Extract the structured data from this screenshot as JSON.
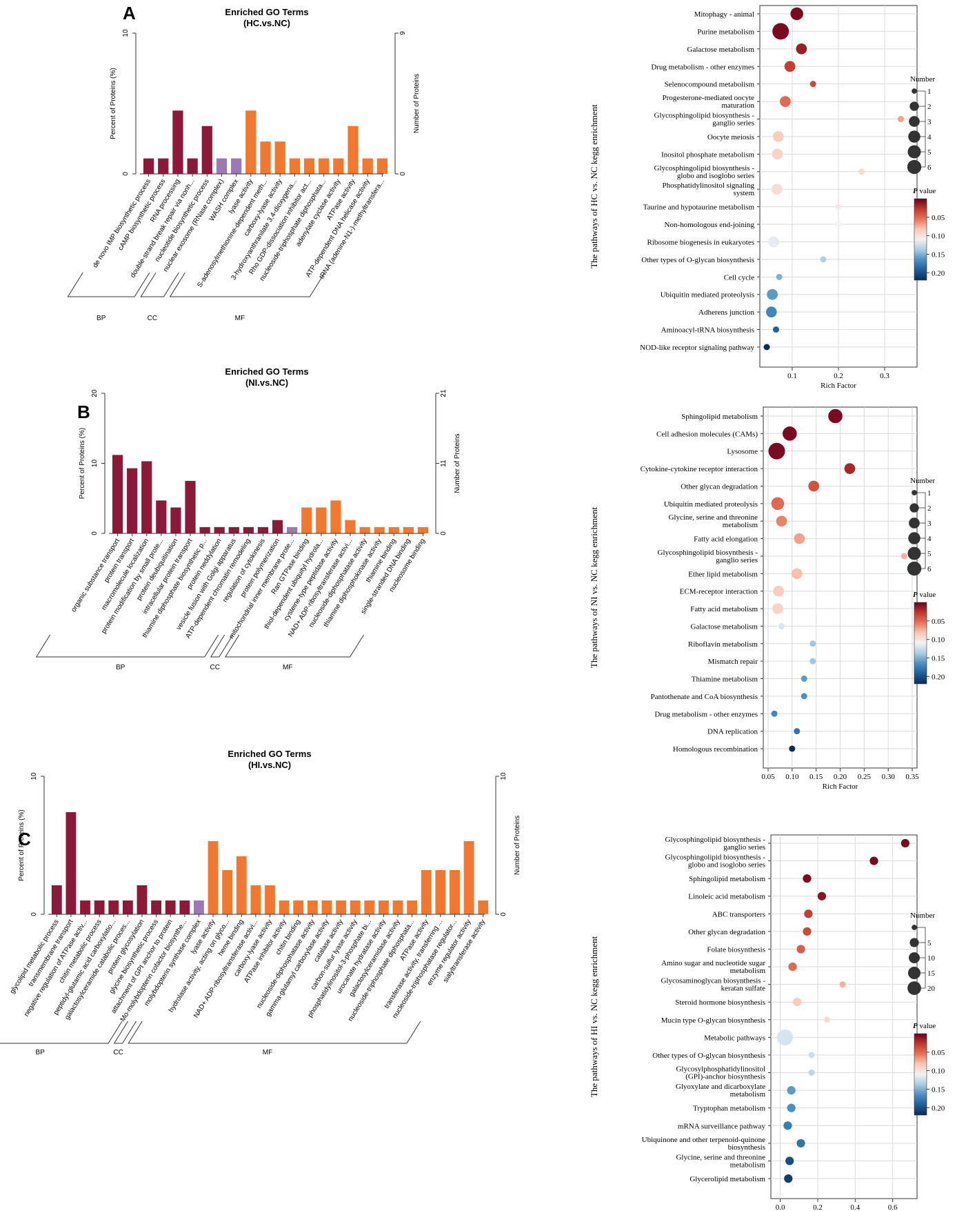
{
  "figure": {
    "panel_labels": [
      "A",
      "B",
      "C"
    ]
  },
  "colors": {
    "BP": "#8b1a3a",
    "CC": "#9b7ab4",
    "MF": "#f07830",
    "grid": "#d9d9d9",
    "axis": "#333333",
    "number_dot": "#333333",
    "pvalue_scale": [
      "#6b0020",
      "#c0392b",
      "#e8735a",
      "#f9c9b6",
      "#f2f2f2",
      "#a9cce3",
      "#4a90c2",
      "#1f5d99",
      "#0b2a55"
    ]
  },
  "chart_data": [
    {
      "type": "bar",
      "panel": "A",
      "title": "Enriched GO Terms",
      "subtitle": "(HC.vs.NC)",
      "ylabel": "Percent of Proteins (%)",
      "y2label": "Number of Proteins",
      "ylim": [
        0,
        10
      ],
      "yticks": [
        "10",
        "0"
      ],
      "y2ticks": [
        "9",
        "0"
      ],
      "categories": [
        "de novo IMP biosynthetic process",
        "cAMP biosynthetic process",
        "RNA processing",
        "double-strand break repair via nonh...",
        "nucleotide biosynthetic process",
        "nuclear exosome (RNase complex)",
        "WASH complex",
        "lyase activity",
        "S-adenosylmethionine-dependent meth...",
        "carboxy-lyase activity",
        "3-hydroxyanthranilate 3,4-dioxygena...",
        "Rho GDP-dissociation inhibitor act...",
        "nucleoside-triphosphate diphosphata...",
        "adenylate cyclase activity",
        "ATPase activity",
        "ATP-dependent DNA helicase activity",
        "tRNA (adenine-N1-)-methyltransfera..."
      ],
      "values": [
        1.1,
        1.1,
        4.5,
        1.1,
        3.4,
        1.1,
        1.1,
        4.5,
        2.3,
        2.3,
        1.1,
        1.1,
        1.1,
        1.1,
        3.4,
        1.1,
        1.1
      ],
      "groups": [
        "BP",
        "BP",
        "BP",
        "BP",
        "BP",
        "CC",
        "CC",
        "MF",
        "MF",
        "MF",
        "MF",
        "MF",
        "MF",
        "MF",
        "MF",
        "MF",
        "MF"
      ],
      "group_labels": [
        "BP",
        "CC",
        "MF"
      ]
    },
    {
      "type": "scatter",
      "panel": "A",
      "ylabel": "The pathways of HC vs. NC kegg enrichment",
      "xlabel": "Rich Factor",
      "xlim": [
        0.03,
        0.37
      ],
      "xticks": [
        0.1,
        0.2,
        0.3
      ],
      "xtick_labels": [
        "0.1",
        "0.2",
        "0.3"
      ],
      "number_legend_title": "Number",
      "number_legend": [
        "1",
        "2",
        "3",
        "4",
        "5",
        "6"
      ],
      "number_scale": [
        1,
        6
      ],
      "pvalue_legend_title": "P value",
      "pvalue_ticks": [
        "0.05",
        "0.10",
        "0.15",
        "0.20"
      ],
      "pvalue_range": [
        0,
        0.22
      ],
      "terms": [
        "Mitophagy - animal",
        "Purine metabolism",
        "Galactose metabolism",
        "Drug metabolism - other enzymes",
        "Selenocompound metabolism",
        "Progesterone-mediated oocyte\nmaturation",
        "Glycosphingolipid biosynthesis -\nganglio series",
        "Oocyte meiosis",
        "Inositol phosphate metabolism",
        "Glycosphingolipid biosynthesis -\nglobo and isoglobo series",
        "Phosphatidylinositol signaling\nsystem",
        "Taurine and hypotaurine metabolism",
        "Non-homologous end-joining",
        "Ribosome biogenesis in eukaryotes",
        "Other types of O-glycan biosynthesis",
        "Cell cycle",
        "Ubiquitin mediated proteolysis",
        "Adherens junction",
        "Aminoacyl-tRNA biosynthesis",
        "NOD-like receptor signaling pathway"
      ],
      "rich_factor": [
        0.11,
        0.075,
        0.12,
        0.095,
        0.145,
        0.085,
        0.335,
        0.07,
        0.068,
        0.25,
        0.067,
        0.2,
        0.2,
        0.06,
        0.167,
        0.072,
        0.057,
        0.055,
        0.065,
        0.045
      ],
      "count": [
        3,
        6,
        2,
        2,
        1,
        2,
        1,
        2,
        2,
        1,
        2,
        1,
        1,
        2,
        1,
        1,
        2,
        2,
        1,
        1
      ],
      "pvalue": [
        0.005,
        0.005,
        0.015,
        0.03,
        0.035,
        0.05,
        0.07,
        0.085,
        0.09,
        0.095,
        0.095,
        0.105,
        0.11,
        0.115,
        0.135,
        0.15,
        0.16,
        0.17,
        0.19,
        0.22
      ]
    },
    {
      "type": "bar",
      "panel": "B",
      "title": "Enriched GO Terms",
      "subtitle": "(NI.vs.NC)",
      "ylabel": "Percent of Proteins (%)",
      "y2label": "Number of Proteins",
      "ylim": [
        0,
        20
      ],
      "yticks": [
        "20",
        "10",
        "0"
      ],
      "y2ticks": [
        "21",
        "11",
        "0"
      ],
      "categories": [
        "organic substance transport",
        "protein transport",
        "macromolecule localization",
        "protein modification by small prote...",
        "protein deubiquitination",
        "intracellular protein transport",
        "thiamine diphosphate biosynthetic p...",
        "protein neddylation",
        "vesicle fusion with Golgi apparatus",
        "ATP-dependent chromatin remodeling",
        "regulation of cytokinesis",
        "protein polymerization",
        "mitochondrial inner membrane prote...",
        "Ran GTPase binding",
        "thiol-dependent ubiquityl hydrola...",
        "cysteine-type peptidase activity",
        "NAD+ ADP-ribosyltransferase activi...",
        "nucleoside-diphosphatase activity",
        "thiamine diphosphokinase activity",
        "thiamine binding",
        "single-stranded DNA binding",
        "nucleosome binding"
      ],
      "values": [
        11.2,
        9.3,
        10.3,
        4.7,
        3.7,
        7.5,
        0.9,
        0.9,
        0.9,
        0.9,
        0.9,
        1.9,
        0.9,
        3.7,
        3.7,
        4.7,
        1.9,
        0.9,
        0.9,
        0.9,
        0.9,
        0.9
      ],
      "groups": [
        "BP",
        "BP",
        "BP",
        "BP",
        "BP",
        "BP",
        "BP",
        "BP",
        "BP",
        "BP",
        "BP",
        "BP",
        "CC",
        "MF",
        "MF",
        "MF",
        "MF",
        "MF",
        "MF",
        "MF",
        "MF",
        "MF"
      ],
      "group_labels": [
        "BP",
        "CC",
        "MF"
      ]
    },
    {
      "type": "scatter",
      "panel": "B",
      "ylabel": "The pathways of NI vs. NC kegg enrichment",
      "xlabel": "Rich Factor",
      "xlim": [
        0.04,
        0.36
      ],
      "xticks": [
        0.05,
        0.1,
        0.15,
        0.2,
        0.25,
        0.3,
        0.35
      ],
      "xtick_labels": [
        "0.05",
        "0.10",
        "0.15",
        "0.20",
        "0.25",
        "0.30",
        "0.35"
      ],
      "number_legend_title": "Number",
      "number_legend": [
        "1",
        "2",
        "3",
        "4",
        "5",
        "6"
      ],
      "number_scale": [
        1,
        6
      ],
      "pvalue_legend_title": "P value",
      "pvalue_ticks": [
        "0.05",
        "0.10",
        "0.15",
        "0.20"
      ],
      "pvalue_range": [
        0,
        0.22
      ],
      "terms": [
        "Sphingolipid metabolism",
        "Cell adhesion molecules (CAMs)",
        "Lysosome",
        "Cytokine-cytokine receptor interaction",
        "Other glycan degradation",
        "Ubiquitin mediated proteolysis",
        "Glycine, serine and threonine\nmetabolism",
        "Fatty acid elongation",
        "Glycosphingolipid biosynthesis -\nganglio series",
        "Ether lipid metabolism",
        "ECM-receptor interaction",
        "Fatty acid metabolism",
        "Galactose metabolism",
        "Riboflavin metabolism",
        "Mismatch repair",
        "Thiamine metabolism",
        "Pantothenate and CoA biosynthesis",
        "Drug metabolism - other enzymes",
        "DNA replication",
        "Homologous recombination"
      ],
      "rich_factor": [
        0.19,
        0.095,
        0.068,
        0.22,
        0.145,
        0.07,
        0.078,
        0.115,
        0.333,
        0.11,
        0.072,
        0.07,
        0.078,
        0.143,
        0.143,
        0.125,
        0.125,
        0.063,
        0.11,
        0.1
      ],
      "count": [
        4,
        4,
        6,
        2,
        2,
        3,
        2,
        2,
        1,
        2,
        2,
        2,
        1,
        1,
        1,
        1,
        1,
        1,
        1,
        1
      ],
      "pvalue": [
        0.005,
        0.005,
        0.005,
        0.02,
        0.04,
        0.05,
        0.06,
        0.07,
        0.075,
        0.08,
        0.085,
        0.09,
        0.12,
        0.14,
        0.14,
        0.16,
        0.165,
        0.17,
        0.18,
        0.22
      ]
    },
    {
      "type": "bar",
      "panel": "C",
      "title": "Enriched GO Terms",
      "subtitle": "(HI.vs.NC)",
      "ylabel": "Percent of Proteins (%)",
      "y2label": "Number of Proteins",
      "ylim": [
        0,
        10
      ],
      "yticks": [
        "10",
        "0"
      ],
      "y2ticks": [
        "10",
        "0"
      ],
      "categories": [
        "glycolipid metabolic process",
        "transmembrane transport",
        "negative regulation of ATPase activ...",
        "chitin metabolic process",
        "peptidyl-glutamic acid carboxylatio...",
        "galactosylceramide catabolic proces...",
        "protein glycosylation",
        "glycine biosynthetic process",
        "attachment of GPI anchor to protein",
        "Mo-molybdopterin cofactor biosynthe...",
        "molybdopterin synthase complex",
        "lyase activity",
        "hydrolase activity, acting on glyco...",
        "heme binding",
        "NAD+ ADP-ribosyltransferase activi...",
        "carboxy-lyase activity",
        "ATPase inhibitor activity",
        "chitin binding",
        "nucleoside-diphosphatase activity",
        "gamma-glutamyl carboxylase activity",
        "catalase activity",
        "carbon-sulfur lyase activity",
        "phosphatidylinositol-3-phosphate bi...",
        "urocanate hydratase activity",
        "galactosylceramidase activity",
        "nucleoside-triphosphate diphosphata...",
        "ATPase activity",
        "transferase activity, transferring ...",
        "nucleoside-triphosphatase regulator...",
        "enzyme regulator activity",
        "sialyltransferase activity"
      ],
      "values": [
        2.1,
        7.4,
        1.0,
        1.0,
        1.0,
        1.0,
        2.1,
        1.0,
        1.0,
        1.0,
        1.0,
        5.3,
        3.2,
        4.2,
        2.1,
        2.1,
        1.0,
        1.0,
        1.0,
        1.0,
        1.0,
        1.0,
        1.0,
        1.0,
        1.0,
        1.0,
        3.2,
        3.2,
        3.2,
        5.3,
        1.0
      ],
      "groups": [
        "BP",
        "BP",
        "BP",
        "BP",
        "BP",
        "BP",
        "BP",
        "BP",
        "BP",
        "BP",
        "CC",
        "MF",
        "MF",
        "MF",
        "MF",
        "MF",
        "MF",
        "MF",
        "MF",
        "MF",
        "MF",
        "MF",
        "MF",
        "MF",
        "MF",
        "MF",
        "MF",
        "MF",
        "MF",
        "MF",
        "MF"
      ],
      "group_labels": [
        "BP",
        "CC",
        "MF"
      ]
    },
    {
      "type": "scatter",
      "panel": "C",
      "ylabel": "The pathways of HI vs. NC kegg enrichment",
      "xlabel": "Rich Factor",
      "xlim": [
        -0.05,
        0.73
      ],
      "xticks": [
        0.0,
        0.2,
        0.4,
        0.6
      ],
      "xtick_labels": [
        "0.0",
        "0.2",
        "0.4",
        "0.6"
      ],
      "number_legend_title": "Number",
      "number_legend": [
        "",
        "5",
        "10",
        "15",
        "20"
      ],
      "number_scale": [
        1,
        22
      ],
      "pvalue_legend_title": "P value",
      "pvalue_ticks": [
        "0.05",
        "0.10",
        "0.15",
        "0.20"
      ],
      "pvalue_range": [
        0,
        0.22
      ],
      "terms": [
        "Glycosphingolipid biosynthesis -\nganglio series",
        "Glycosphingolipid biosynthesis -\nglobo and isoglobo series",
        "Sphingolipid metabolism",
        "Linoleic acid metabolism",
        "ABC transporters",
        "Other glycan degradation",
        "Folate biosynthesis",
        "Amino sugar and nucleotide sugar\nmetabolism",
        "Glycosaminoglycan biosynthesis -\nkeratan sulfate",
        "Steroid hormone biosynthesis",
        "Mucin type O-glycan biosynthesis",
        "Metabolic pathways",
        "Other types of O-glycan biosynthesis",
        "Glycosylphosphatidylinositol\n(GPI)-anchor biosynthesis",
        "Glyoxylate and dicarboxylate\nmetabolism",
        "Tryptophan metabolism",
        "mRNA surveillance pathway",
        "Ubiquinone and other terpenoid-quinone\nbiosynthesis",
        "Glycine, serine and threonine\nmetabolism",
        "Glycerolipid metabolism"
      ],
      "rich_factor": [
        0.667,
        0.5,
        0.143,
        0.222,
        0.15,
        0.143,
        0.11,
        0.066,
        0.333,
        0.09,
        0.25,
        0.025,
        0.167,
        0.167,
        0.059,
        0.059,
        0.04,
        0.11,
        0.05,
        0.043
      ],
      "count": [
        2,
        2,
        2,
        2,
        2,
        2,
        2,
        2,
        1,
        2,
        1,
        20,
        1,
        1,
        2,
        2,
        2,
        2,
        2,
        2
      ],
      "pvalue": [
        0.005,
        0.005,
        0.005,
        0.01,
        0.03,
        0.035,
        0.045,
        0.05,
        0.075,
        0.085,
        0.095,
        0.12,
        0.125,
        0.13,
        0.16,
        0.165,
        0.175,
        0.18,
        0.2,
        0.21
      ]
    }
  ]
}
